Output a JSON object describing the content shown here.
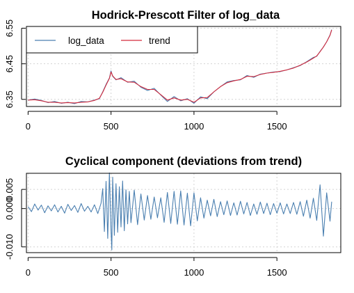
{
  "chart_data": [
    {
      "type": "line",
      "title": "Hodrick-Prescott Filter of log_data",
      "xlabel": "",
      "ylabel": "",
      "xlim": [
        -10,
        1885
      ],
      "ylim": [
        6.33,
        6.555
      ],
      "x_ticks": [
        0,
        500,
        1000,
        1500
      ],
      "x_tick_labels": [
        "0",
        "500",
        "1000",
        "1500"
      ],
      "y_ticks": [
        6.35,
        6.45,
        6.55
      ],
      "y_tick_labels": [
        "6.35",
        "6.45",
        "6.55"
      ],
      "grid": true,
      "legend": {
        "position": "top-left",
        "entries": [
          "log_data",
          "trend"
        ]
      },
      "colors": {
        "log_data": "#4a7fb0",
        "trend": "#d42a3c"
      },
      "series": [
        {
          "name": "log_data",
          "x": [
            0,
            40,
            80,
            120,
            160,
            200,
            240,
            280,
            320,
            360,
            400,
            430,
            450,
            470,
            490,
            500,
            510,
            530,
            560,
            600,
            640,
            680,
            720,
            760,
            800,
            840,
            880,
            920,
            960,
            1000,
            1040,
            1080,
            1120,
            1160,
            1200,
            1240,
            1280,
            1320,
            1360,
            1400,
            1440,
            1480,
            1520,
            1560,
            1600,
            1640,
            1680,
            1720,
            1740,
            1760,
            1780,
            1800,
            1820,
            1830
          ],
          "values": [
            6.348,
            6.351,
            6.347,
            6.341,
            6.344,
            6.339,
            6.342,
            6.338,
            6.344,
            6.343,
            6.348,
            6.352,
            6.371,
            6.392,
            6.41,
            6.43,
            6.415,
            6.405,
            6.411,
            6.398,
            6.401,
            6.384,
            6.375,
            6.381,
            6.362,
            6.344,
            6.358,
            6.346,
            6.352,
            6.339,
            6.357,
            6.352,
            6.371,
            6.386,
            6.399,
            6.403,
            6.405,
            6.417,
            6.412,
            6.421,
            6.424,
            6.427,
            6.428,
            6.433,
            6.439,
            6.445,
            6.456,
            6.468,
            6.471,
            6.485,
            6.497,
            6.512,
            6.531,
            6.546
          ]
        },
        {
          "name": "trend",
          "x": [
            0,
            40,
            80,
            120,
            160,
            200,
            240,
            280,
            320,
            360,
            400,
            430,
            450,
            470,
            490,
            500,
            510,
            530,
            560,
            600,
            640,
            680,
            720,
            760,
            800,
            840,
            880,
            920,
            960,
            1000,
            1040,
            1080,
            1120,
            1160,
            1200,
            1240,
            1280,
            1320,
            1360,
            1400,
            1440,
            1480,
            1520,
            1560,
            1600,
            1640,
            1680,
            1720,
            1740,
            1760,
            1780,
            1800,
            1820,
            1830
          ],
          "values": [
            6.348,
            6.349,
            6.346,
            6.342,
            6.342,
            6.34,
            6.341,
            6.34,
            6.342,
            6.343,
            6.347,
            6.353,
            6.37,
            6.39,
            6.409,
            6.427,
            6.416,
            6.406,
            6.408,
            6.399,
            6.398,
            6.386,
            6.378,
            6.378,
            6.363,
            6.348,
            6.354,
            6.348,
            6.35,
            6.342,
            6.354,
            6.355,
            6.371,
            6.386,
            6.397,
            6.402,
            6.406,
            6.415,
            6.414,
            6.42,
            6.424,
            6.426,
            6.429,
            6.433,
            6.438,
            6.446,
            6.455,
            6.466,
            6.472,
            6.484,
            6.497,
            6.512,
            6.53,
            6.545
          ]
        }
      ]
    },
    {
      "type": "line",
      "title": "Cyclical component (deviations from trend)",
      "xlabel": "",
      "ylabel": "",
      "xlim": [
        -10,
        1885
      ],
      "ylim": [
        -0.0115,
        0.0092
      ],
      "x_ticks": [
        0,
        500,
        1000,
        1500
      ],
      "x_tick_labels": [
        "0",
        "500",
        "1000",
        "1500"
      ],
      "y_ticks": [
        -0.01,
        0,
        0.005
      ],
      "y_tick_labels": [
        "-0.010",
        "0.000",
        "0.005"
      ],
      "grid": true,
      "colors": {
        "cycle": "#4a7fb0"
      },
      "series": [
        {
          "x": [
            0,
            20,
            40,
            60,
            80,
            100,
            120,
            140,
            160,
            180,
            200,
            220,
            240,
            260,
            280,
            300,
            320,
            340,
            360,
            380,
            400,
            420,
            440,
            450,
            460,
            470,
            480,
            490,
            500,
            505,
            510,
            520,
            530,
            540,
            550,
            560,
            570,
            580,
            590,
            600,
            610,
            620,
            640,
            660,
            680,
            700,
            720,
            740,
            760,
            780,
            800,
            820,
            840,
            860,
            880,
            900,
            920,
            940,
            960,
            980,
            1000,
            1020,
            1040,
            1060,
            1080,
            1100,
            1120,
            1140,
            1160,
            1180,
            1200,
            1220,
            1240,
            1260,
            1280,
            1300,
            1320,
            1340,
            1360,
            1380,
            1400,
            1420,
            1440,
            1460,
            1480,
            1500,
            1520,
            1540,
            1560,
            1580,
            1600,
            1620,
            1640,
            1660,
            1680,
            1700,
            1720,
            1740,
            1760,
            1780,
            1800,
            1820,
            1830
          ],
          "values": [
            0.0005,
            -0.0008,
            0.0012,
            -0.0004,
            0.0009,
            -0.0011,
            0.0007,
            -0.0006,
            0.001,
            -0.0009,
            0.0006,
            -0.0012,
            0.0011,
            -0.0005,
            0.0008,
            -0.001,
            0.0013,
            -0.0007,
            0.0006,
            -0.0009,
            0.001,
            -0.0013,
            0.0014,
            0.0052,
            -0.006,
            0.0071,
            -0.0078,
            0.0093,
            -0.0055,
            -0.0108,
            0.0082,
            -0.007,
            0.0065,
            -0.0062,
            0.0057,
            -0.0048,
            0.0072,
            -0.0058,
            0.0049,
            -0.004,
            0.0045,
            -0.0037,
            0.0048,
            -0.0042,
            0.0038,
            -0.003,
            0.0034,
            -0.0028,
            0.003,
            -0.0024,
            0.0028,
            -0.0036,
            0.0042,
            -0.0039,
            0.0045,
            -0.0041,
            0.0046,
            -0.0043,
            0.004,
            -0.0045,
            0.0041,
            -0.0032,
            0.0028,
            -0.0025,
            0.0022,
            -0.0019,
            0.0024,
            -0.0021,
            0.0018,
            -0.0016,
            0.002,
            -0.0018,
            0.0015,
            -0.0017,
            0.0019,
            -0.0014,
            0.0016,
            -0.0018,
            0.0012,
            -0.0015,
            0.0017,
            -0.0013,
            0.0014,
            -0.0016,
            0.0013,
            -0.0012,
            0.0015,
            -0.0014,
            0.0012,
            -0.0013,
            0.0016,
            -0.0015,
            0.0018,
            -0.002,
            0.0022,
            -0.0025,
            0.0027,
            -0.0031,
            0.0062,
            -0.0072,
            0.0041,
            -0.0033,
            0.0018
          ]
        }
      ]
    }
  ]
}
